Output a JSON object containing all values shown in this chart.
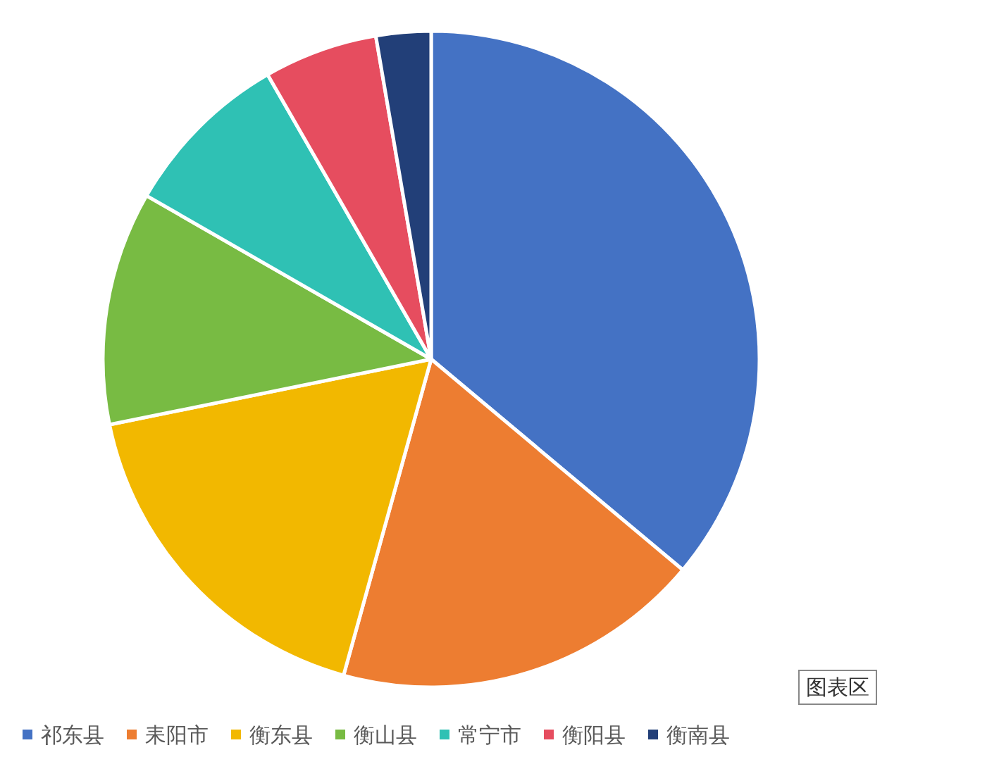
{
  "chart_data": {
    "type": "pie",
    "categories": [
      "祁东县",
      "耒阳市",
      "衡东县",
      "衡山县",
      "常宁市",
      "衡阳县",
      "衡南县"
    ],
    "values": [
      36.1,
      18.2,
      17.5,
      11.5,
      8.4,
      5.6,
      2.7
    ],
    "colors": [
      "#4472c4",
      "#ed7d31",
      "#f2b800",
      "#78bb43",
      "#2fc1b4",
      "#e64d5f",
      "#223f78"
    ],
    "legend": "bottom",
    "annotations": [
      "图表区"
    ]
  }
}
